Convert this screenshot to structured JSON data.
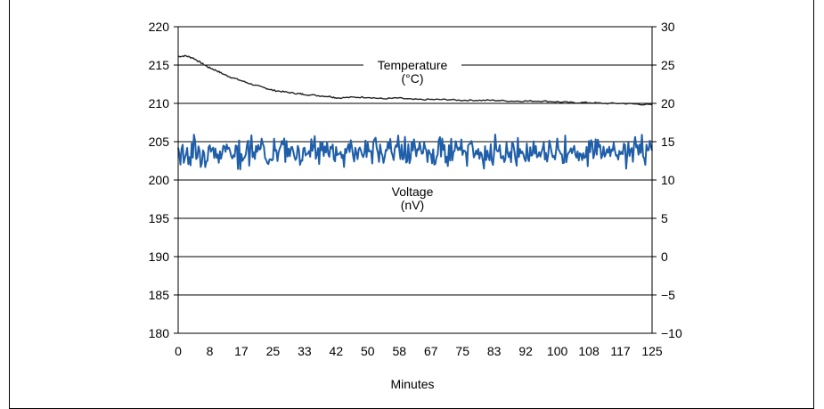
{
  "chart_data": {
    "type": "line",
    "xlabel": "Minutes",
    "x_ticks": [
      "0",
      "8",
      "17",
      "25",
      "33",
      "42",
      "50",
      "58",
      "67",
      "75",
      "83",
      "92",
      "100",
      "108",
      "117",
      "125"
    ],
    "x_range": [
      0,
      125
    ],
    "y_left": {
      "range": [
        180,
        220
      ],
      "ticks": [
        "180",
        "185",
        "190",
        "195",
        "200",
        "205",
        "210",
        "215",
        "220"
      ]
    },
    "y_right": {
      "range": [
        -10,
        30
      ],
      "ticks": [
        "−10",
        "−5",
        "0",
        "5",
        "10",
        "15",
        "20",
        "25",
        "30"
      ]
    },
    "grid": "horizontal",
    "series": [
      {
        "name": "Temperature (°C)",
        "label_lines": [
          "Temperature",
          "(°C)"
        ],
        "axis": "left",
        "color": "#222222",
        "x": [
          0,
          2,
          4,
          6,
          8,
          10,
          12,
          14,
          17,
          20,
          23,
          25,
          28,
          31,
          33,
          37,
          40,
          42,
          46,
          50,
          54,
          58,
          62,
          67,
          71,
          75,
          79,
          83,
          88,
          92,
          96,
          100,
          104,
          108,
          112,
          117,
          121,
          125
        ],
        "y": [
          216.1,
          216.2,
          215.9,
          215.3,
          214.7,
          214.3,
          213.8,
          213.4,
          212.9,
          212.4,
          212.0,
          211.7,
          211.5,
          211.3,
          211.2,
          211.0,
          210.9,
          210.7,
          210.8,
          210.8,
          210.6,
          210.7,
          210.5,
          210.5,
          210.5,
          210.4,
          210.4,
          210.4,
          210.3,
          210.3,
          210.3,
          210.2,
          210.1,
          210.1,
          210.0,
          210.0,
          209.9,
          209.8
        ]
      },
      {
        "name": "Voltage (nV)",
        "label_lines": [
          "Voltage",
          "(nV)"
        ],
        "axis": "right",
        "color": "#1f5ea8",
        "description": "noisy signal around 13.5 nV",
        "mean": 13.5,
        "range": [
          11,
          16.5
        ]
      }
    ]
  }
}
